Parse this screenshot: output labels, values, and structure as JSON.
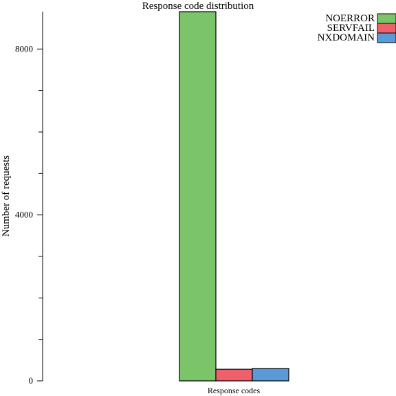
{
  "chart_data": {
    "type": "bar",
    "title": "Response code distribution",
    "xlabel": "Response codes",
    "ylabel": "Number of requests",
    "ylim": [
      0,
      8900
    ],
    "yticks_major": [
      0,
      4000,
      8000
    ],
    "yticks_minor_step": 1000,
    "grid": false,
    "legend_position": "top-right",
    "categories": [
      "Response codes"
    ],
    "series": [
      {
        "name": "NOERROR",
        "values": [
          8900
        ],
        "color": "#7bc46a"
      },
      {
        "name": "SERVFAIL",
        "values": [
          280
        ],
        "color": "#f0606b"
      },
      {
        "name": "NXDOMAIN",
        "values": [
          300
        ],
        "color": "#5a9ad8"
      }
    ]
  }
}
